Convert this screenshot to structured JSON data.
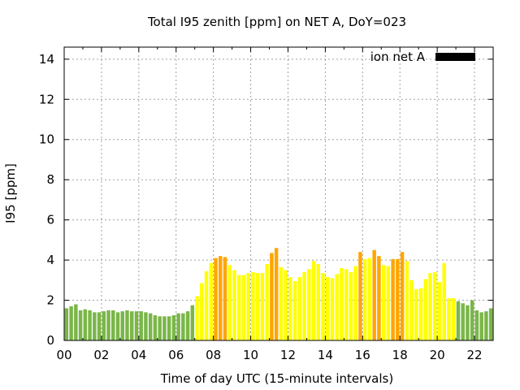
{
  "chart_data": {
    "type": "bar",
    "title": "Total I95 zenith [ppm] on NET A, DoY=023",
    "xlabel": "Time of day UTC (15-minute intervals)",
    "ylabel": "I95 [ppm]",
    "xlim": [
      0,
      23
    ],
    "ylim": [
      0,
      14.6
    ],
    "x_ticks": [
      "00",
      "02",
      "04",
      "06",
      "08",
      "10",
      "12",
      "14",
      "16",
      "18",
      "20",
      "22"
    ],
    "y_ticks": [
      "0",
      "2",
      "4",
      "6",
      "8",
      "10",
      "12",
      "14"
    ],
    "grid": true,
    "legend": {
      "label": "ion net A",
      "color": "#000000",
      "position": "top-right"
    },
    "interval_hours": 0.25,
    "colors": {
      "low": "#7ab648",
      "medium": "#ffff00",
      "high": "#ffa500"
    },
    "values": [
      1.6,
      1.7,
      1.8,
      1.5,
      1.55,
      1.5,
      1.4,
      1.4,
      1.45,
      1.5,
      1.5,
      1.4,
      1.45,
      1.5,
      1.45,
      1.45,
      1.45,
      1.4,
      1.35,
      1.25,
      1.2,
      1.2,
      1.2,
      1.25,
      1.35,
      1.35,
      1.45,
      1.75,
      2.2,
      2.85,
      3.45,
      3.85,
      4.1,
      4.2,
      4.15,
      3.75,
      3.5,
      3.25,
      3.25,
      3.35,
      3.4,
      3.35,
      3.35,
      3.8,
      4.35,
      4.6,
      3.65,
      3.5,
      3.15,
      2.95,
      3.15,
      3.4,
      3.55,
      3.95,
      3.8,
      3.35,
      3.15,
      3.1,
      3.3,
      3.6,
      3.55,
      3.4,
      3.7,
      4.4,
      4.05,
      4.1,
      4.5,
      4.2,
      3.75,
      3.7,
      4.05,
      4.05,
      4.4,
      3.95,
      3.0,
      2.55,
      2.6,
      3.05,
      3.35,
      3.4,
      2.9,
      3.85,
      2.1,
      2.1,
      1.95,
      1.85,
      1.75,
      2.0,
      1.5,
      1.4,
      1.45,
      1.6
    ],
    "levels": [
      "low",
      "low",
      "low",
      "low",
      "low",
      "low",
      "low",
      "low",
      "low",
      "low",
      "low",
      "low",
      "low",
      "low",
      "low",
      "low",
      "low",
      "low",
      "low",
      "low",
      "low",
      "low",
      "low",
      "low",
      "low",
      "low",
      "low",
      "low",
      "medium",
      "medium",
      "medium",
      "medium",
      "high",
      "high",
      "high",
      "medium",
      "medium",
      "medium",
      "medium",
      "medium",
      "medium",
      "medium",
      "medium",
      "medium",
      "high",
      "high",
      "medium",
      "medium",
      "medium",
      "medium",
      "medium",
      "medium",
      "medium",
      "medium",
      "medium",
      "medium",
      "medium",
      "medium",
      "medium",
      "medium",
      "medium",
      "medium",
      "medium",
      "high",
      "medium",
      "medium",
      "high",
      "high",
      "medium",
      "medium",
      "high",
      "high",
      "high",
      "medium",
      "medium",
      "medium",
      "medium",
      "medium",
      "medium",
      "medium",
      "medium",
      "medium",
      "medium",
      "medium",
      "low",
      "low",
      "low",
      "low",
      "low",
      "low",
      "low",
      "low"
    ]
  }
}
